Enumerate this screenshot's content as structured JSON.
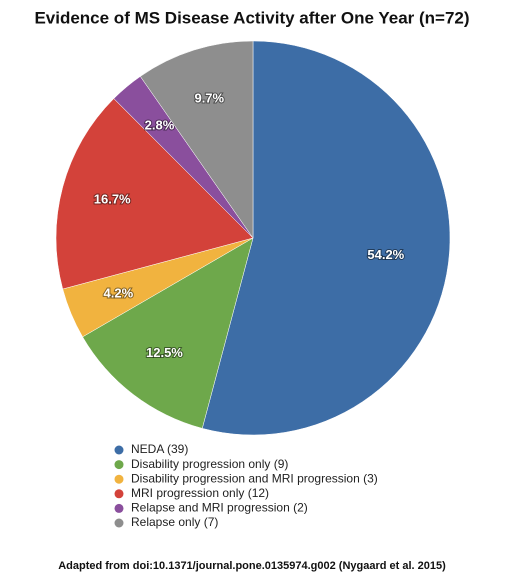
{
  "chart_data": {
    "type": "pie",
    "title": "Evidence of MS Disease Activity after One Year (n=72)",
    "categories": [
      "NEDA (39)",
      "Disability progression only (9)",
      "Disability progression and MRI progression (3)",
      "MRI progression only (12)",
      "Relapse and MRI progression (2)",
      "Relapse only (7)"
    ],
    "values": [
      54.2,
      12.5,
      4.2,
      16.7,
      2.8,
      9.7
    ],
    "value_labels": [
      "54.2%",
      "12.5%",
      "4.2%",
      "16.7%",
      "2.8%",
      "9.7%"
    ],
    "colors": [
      "#3d6da6",
      "#6ea84b",
      "#f1b33f",
      "#d3423a",
      "#8a4f9d",
      "#8e8e8e"
    ],
    "source": "Adapted from doi:10.1371/journal.pone.0135974.g002 (Nygaard et al. 2015)"
  }
}
